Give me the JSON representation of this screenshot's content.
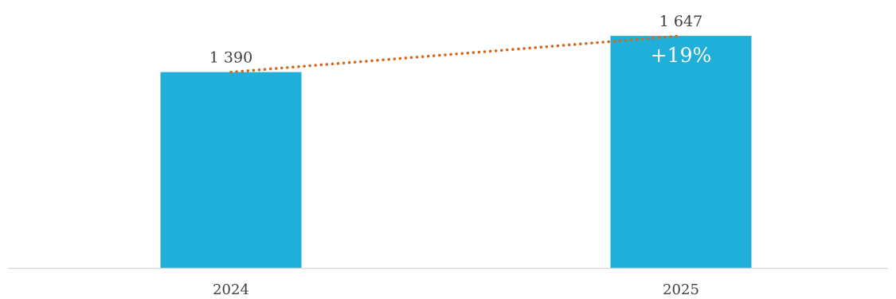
{
  "chart_data": {
    "type": "bar",
    "categories": [
      "2024",
      "2025"
    ],
    "values": [
      1390,
      1647
    ],
    "data_labels": [
      "1 390",
      "1 647"
    ],
    "ylim": [
      0,
      1800
    ],
    "grid": false,
    "legend": "none",
    "annotation": {
      "type": "trend-line",
      "style": "dotted",
      "label": "+19%"
    },
    "colors": {
      "bar": "#1FAFD8",
      "trend_line": "#D2691E",
      "axis": "#D9D9D9",
      "label_text": "#404040",
      "annotation_text": "#FFFFFF"
    }
  }
}
